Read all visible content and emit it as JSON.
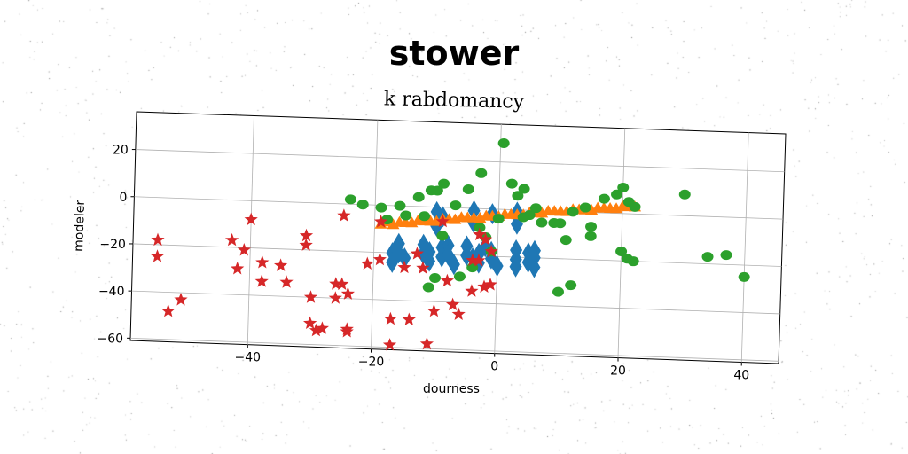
{
  "chart_data": {
    "type": "scatter",
    "title": "stower",
    "subtitle": "k rabdomancy",
    "xlabel": "dourness",
    "ylabel": "modeler",
    "xlim": [
      -59,
      46
    ],
    "ylim": [
      -61,
      36
    ],
    "xticks": [
      -40,
      -20,
      0,
      20,
      40
    ],
    "yticks": [
      20,
      0,
      -20,
      -40,
      -60
    ],
    "grid": true,
    "series": [
      {
        "marker": "diamond",
        "color": "#1f77b4",
        "points": [
          [
            -17,
            -20
          ],
          [
            -17,
            -24
          ],
          [
            -16,
            -16
          ],
          [
            -16,
            -20
          ],
          [
            -15,
            -22
          ],
          [
            -12,
            -16
          ],
          [
            -12,
            -20
          ],
          [
            -11,
            -19
          ],
          [
            -11,
            -23
          ],
          [
            -10,
            -2
          ],
          [
            -10,
            -8
          ],
          [
            -9,
            -4
          ],
          [
            -9,
            -17
          ],
          [
            -9,
            -21
          ],
          [
            -8,
            -16
          ],
          [
            -8,
            -20
          ],
          [
            -7,
            -24
          ],
          [
            -5,
            -16
          ],
          [
            -5,
            -20
          ],
          [
            -4,
            -1
          ],
          [
            -4,
            -6
          ],
          [
            -4,
            -21
          ],
          [
            -3,
            -19
          ],
          [
            -3,
            -23
          ],
          [
            -2,
            -16
          ],
          [
            -1,
            -2
          ],
          [
            -1,
            -18
          ],
          [
            -1,
            -21
          ],
          [
            0,
            -24
          ],
          [
            3,
            -1
          ],
          [
            3,
            -6
          ],
          [
            3,
            -17
          ],
          [
            3,
            -21
          ],
          [
            3,
            -24
          ],
          [
            5,
            -18
          ],
          [
            5,
            -22
          ],
          [
            6,
            -17
          ],
          [
            6,
            -20
          ],
          [
            6,
            -24
          ]
        ]
      },
      {
        "marker": "triangle",
        "color": "#ff7f0e",
        "points": [
          [
            -19,
            -8
          ],
          [
            -18,
            -7
          ],
          [
            -17,
            -8
          ],
          [
            -16,
            -7
          ],
          [
            -15,
            -7
          ],
          [
            -14,
            -7
          ],
          [
            -13,
            -6
          ],
          [
            -12,
            -6
          ],
          [
            -11,
            -6
          ],
          [
            -10,
            -6
          ],
          [
            -9,
            -5
          ],
          [
            -8,
            -5
          ],
          [
            -7,
            -5
          ],
          [
            -6,
            -4
          ],
          [
            -5,
            -4
          ],
          [
            -4,
            -4
          ],
          [
            -3,
            -4
          ],
          [
            -2,
            -3
          ],
          [
            -1,
            -3
          ],
          [
            0,
            -3
          ],
          [
            1,
            -2
          ],
          [
            2,
            -2
          ],
          [
            3,
            -2
          ],
          [
            4,
            -2
          ],
          [
            5,
            -1
          ],
          [
            6,
            -1
          ],
          [
            7,
            -1
          ],
          [
            8,
            0
          ],
          [
            9,
            0
          ],
          [
            10,
            0
          ],
          [
            11,
            0
          ],
          [
            12,
            1
          ],
          [
            13,
            1
          ],
          [
            14,
            1
          ],
          [
            15,
            1
          ],
          [
            16,
            2
          ],
          [
            17,
            2
          ],
          [
            18,
            2
          ],
          [
            19,
            2
          ],
          [
            20,
            3
          ],
          [
            21,
            3
          ],
          [
            22,
            3
          ]
        ]
      },
      {
        "marker": "circle",
        "color": "#2ca02c",
        "points": [
          [
            0.5,
            28
          ],
          [
            -3,
            15
          ],
          [
            -5,
            8
          ],
          [
            -9,
            10
          ],
          [
            -10,
            7
          ],
          [
            -11,
            7
          ],
          [
            -13,
            4
          ],
          [
            -12,
            -4
          ],
          [
            -16,
            0
          ],
          [
            -19,
            -1
          ],
          [
            -22,
            0
          ],
          [
            -24,
            2
          ],
          [
            -15,
            -4
          ],
          [
            -18,
            -6
          ],
          [
            -9,
            -12
          ],
          [
            -3,
            -8
          ],
          [
            -2,
            -12
          ],
          [
            -1,
            -18
          ],
          [
            -4,
            -25
          ],
          [
            -6,
            -29
          ],
          [
            -11,
            -34
          ],
          [
            -10,
            -30
          ],
          [
            3,
            6
          ],
          [
            4,
            9
          ],
          [
            5,
            -2
          ],
          [
            6,
            1
          ],
          [
            9,
            -5
          ],
          [
            10,
            -5
          ],
          [
            12,
            0
          ],
          [
            14,
            2
          ],
          [
            15,
            -6
          ],
          [
            15,
            -10
          ],
          [
            17,
            6
          ],
          [
            19,
            8
          ],
          [
            20,
            11
          ],
          [
            21,
            5
          ],
          [
            22,
            3
          ],
          [
            22,
            -20
          ],
          [
            21,
            -19
          ],
          [
            20,
            -16
          ],
          [
            12,
            -31
          ],
          [
            10,
            -34
          ],
          [
            30,
            9
          ],
          [
            34,
            -17
          ],
          [
            37,
            -16
          ],
          [
            40,
            -25
          ],
          [
            4,
            -3
          ],
          [
            -7,
            1
          ],
          [
            11,
            -12
          ],
          [
            2,
            11
          ],
          [
            7,
            -5
          ],
          [
            0,
            -4
          ]
        ]
      },
      {
        "marker": "star",
        "color": "#d62728",
        "points": [
          [
            -55,
            -18
          ],
          [
            -55,
            -25
          ],
          [
            -53,
            -48
          ],
          [
            -51,
            -43
          ],
          [
            -43,
            -17
          ],
          [
            -41,
            -21
          ],
          [
            -40,
            -8
          ],
          [
            -42,
            -29
          ],
          [
            -38,
            -26
          ],
          [
            -38,
            -34
          ],
          [
            -35,
            -27
          ],
          [
            -34,
            -34
          ],
          [
            -31,
            -14
          ],
          [
            -31,
            -18
          ],
          [
            -30,
            -40
          ],
          [
            -30,
            -51
          ],
          [
            -29,
            -54
          ],
          [
            -28,
            -53
          ],
          [
            -26,
            -34
          ],
          [
            -25,
            -34
          ],
          [
            -24,
            -38
          ],
          [
            -24,
            -53
          ],
          [
            -24,
            -54
          ],
          [
            -21,
            -25
          ],
          [
            -19,
            -23
          ],
          [
            -17,
            -48
          ],
          [
            -17,
            -59
          ],
          [
            -14,
            -48
          ],
          [
            -11,
            -58
          ],
          [
            -25,
            -5
          ],
          [
            -19,
            -7
          ],
          [
            -12,
            -26
          ],
          [
            -10,
            -44
          ],
          [
            -9,
            -6
          ],
          [
            -8,
            -31
          ],
          [
            -7,
            -41
          ],
          [
            -6,
            -45
          ],
          [
            -4,
            -22
          ],
          [
            -4,
            -35
          ],
          [
            -3,
            -11
          ],
          [
            -2,
            -13
          ],
          [
            -1,
            -18
          ],
          [
            -2,
            -33
          ],
          [
            -1,
            -32
          ],
          [
            -3,
            -22
          ],
          [
            -13,
            -20
          ],
          [
            -15,
            -26
          ],
          [
            -26,
            -40
          ]
        ]
      }
    ]
  }
}
